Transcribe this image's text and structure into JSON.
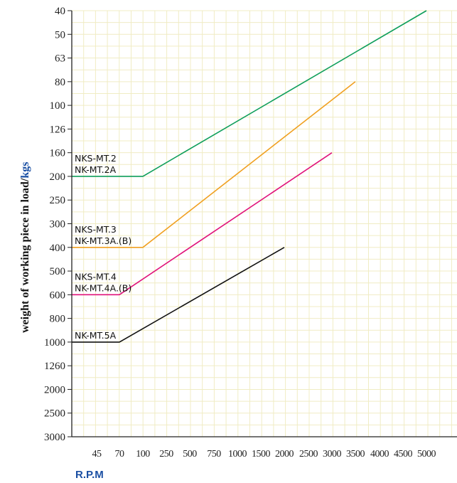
{
  "chart_data": {
    "type": "line",
    "title": "",
    "xlabel": "R.P.M",
    "ylabel_parts": [
      "weight of working piece in load/",
      "kgs"
    ],
    "y_ticks": [
      40,
      50,
      63,
      80,
      100,
      126,
      160,
      200,
      250,
      300,
      400,
      500,
      600,
      800,
      1000,
      1260,
      2000,
      2500,
      3000
    ],
    "x_ticks": [
      45,
      70,
      100,
      250,
      500,
      750,
      1000,
      1500,
      2000,
      2500,
      3000,
      3500,
      4000,
      4500,
      5000
    ],
    "grid": true,
    "colors": {
      "ylabel_main": "#111111",
      "ylabel_unit": "#1a4fa3",
      "xlabel": "#1a4fa3",
      "grid": "#f0ecc4"
    },
    "series": [
      {
        "labels": [
          "NKS-MT.2",
          "NK-MT.2A"
        ],
        "color": "#0e9e5a",
        "x": [
          0,
          100,
          5000
        ],
        "y": [
          200,
          200,
          40
        ]
      },
      {
        "labels": [
          "NKS-MT.3",
          "NK-MT.3A.(B)"
        ],
        "color": "#f0a020",
        "x": [
          0,
          100,
          3500
        ],
        "y": [
          400,
          400,
          80
        ]
      },
      {
        "labels": [
          "NKS-MT.4",
          "NK-MT.4A.(B)"
        ],
        "color": "#e0127a",
        "x": [
          0,
          70,
          3000
        ],
        "y": [
          600,
          600,
          160
        ]
      },
      {
        "labels": [
          "NK-MT.5A"
        ],
        "color": "#111111",
        "x": [
          0,
          70,
          2000
        ],
        "y": [
          1000,
          1000,
          400
        ]
      }
    ]
  }
}
